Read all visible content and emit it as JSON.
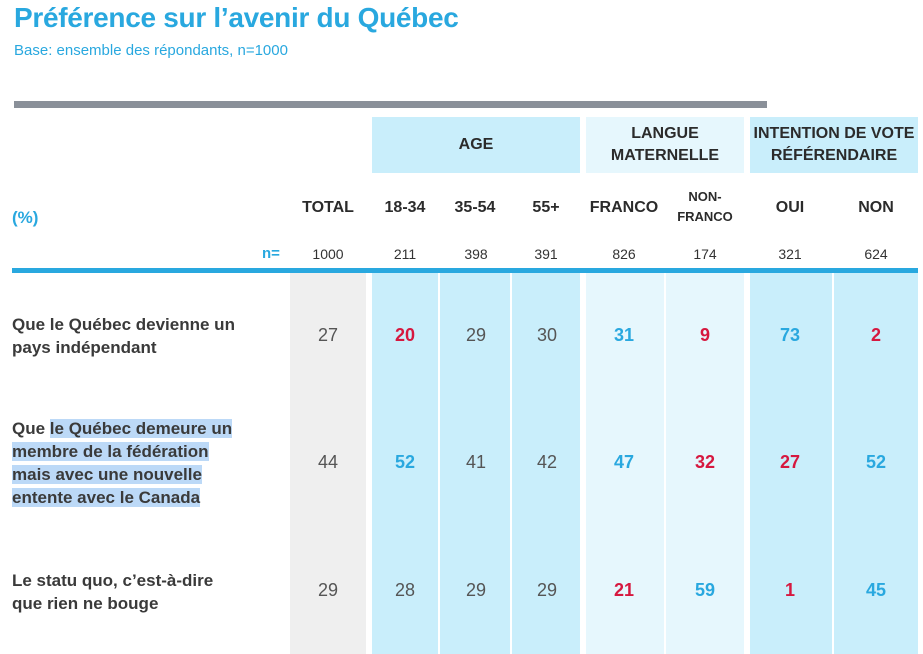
{
  "title": "Préférence sur l’avenir du Québec",
  "subtitle": "Base: ensemble des répondants, n=1000",
  "pct_label": "(%)",
  "n_label": "n=",
  "groups": [
    {
      "id": "age",
      "label": "AGE"
    },
    {
      "id": "langue",
      "label_line1": "LANGUE",
      "label_line2": "MATERNELLE"
    },
    {
      "id": "intention",
      "label_line1": "INTENTION DE VOTE",
      "label_line2": "RÉFÉRENDAIRE"
    }
  ],
  "columns": [
    {
      "label": "TOTAL",
      "n": "1000"
    },
    {
      "label": "18-34",
      "n": "211"
    },
    {
      "label": "35-54",
      "n": "398"
    },
    {
      "label": "55+",
      "n": "391"
    },
    {
      "label": "FRANCO",
      "n": "826"
    },
    {
      "label_line1": "NON-",
      "label_line2": "FRANCO",
      "n": "174"
    },
    {
      "label": "OUI",
      "n": "321"
    },
    {
      "label": "NON",
      "n": "624"
    }
  ],
  "rows": [
    {
      "label_line1": "Que le Québec devienne un",
      "label_line2": "pays indépendant",
      "values": [
        "27",
        "20",
        "29",
        "30",
        "31",
        "9",
        "73",
        "2"
      ],
      "styles": [
        "total",
        "neg",
        "neutral",
        "neutral",
        "pos",
        "neg",
        "pos",
        "neg"
      ]
    },
    {
      "label_pre": "Que ",
      "label_hl1": "le Québec demeure un",
      "label_hl2": "membre de la fédération",
      "label_hl3": "mais avec une nouvelle",
      "label_hl4": "entente avec le Canada",
      "values": [
        "44",
        "52",
        "41",
        "42",
        "47",
        "32",
        "27",
        "52"
      ],
      "styles": [
        "total",
        "pos",
        "neutral",
        "neutral",
        "pos",
        "neg",
        "neg",
        "pos"
      ]
    },
    {
      "label_line1": "Le statu quo, c’est-à-dire",
      "label_line2": "que rien ne bouge",
      "values": [
        "29",
        "28",
        "29",
        "29",
        "21",
        "59",
        "1",
        "45"
      ],
      "styles": [
        "total",
        "neutral",
        "neutral",
        "neutral",
        "neg",
        "pos",
        "neg",
        "pos"
      ]
    }
  ],
  "colors": {
    "accent": "#29a8df",
    "negative": "#d6183f",
    "band_strong": "#c9eefb",
    "band_light": "#e6f7fd",
    "total_col": "#efefef"
  },
  "chart_data": {
    "type": "table",
    "title": "Préférence sur l’avenir du Québec",
    "subtitle": "Base: ensemble des répondants, n=1000",
    "categories": [
      "TOTAL",
      "18-34",
      "35-54",
      "55+",
      "FRANCO",
      "NON-FRANCO",
      "OUI",
      "NON"
    ],
    "n": [
      1000,
      211,
      398,
      391,
      826,
      174,
      321,
      624
    ],
    "series": [
      {
        "name": "Que le Québec devienne un pays indépendant",
        "values": [
          27,
          20,
          29,
          30,
          31,
          9,
          73,
          2
        ]
      },
      {
        "name": "Que le Québec demeure un membre de la fédération mais avec une nouvelle entente avec le Canada",
        "values": [
          44,
          52,
          41,
          42,
          47,
          32,
          27,
          52
        ]
      },
      {
        "name": "Le statu quo, c’est-à-dire que rien ne bouge",
        "values": [
          29,
          28,
          29,
          29,
          21,
          59,
          1,
          45
        ]
      }
    ]
  }
}
